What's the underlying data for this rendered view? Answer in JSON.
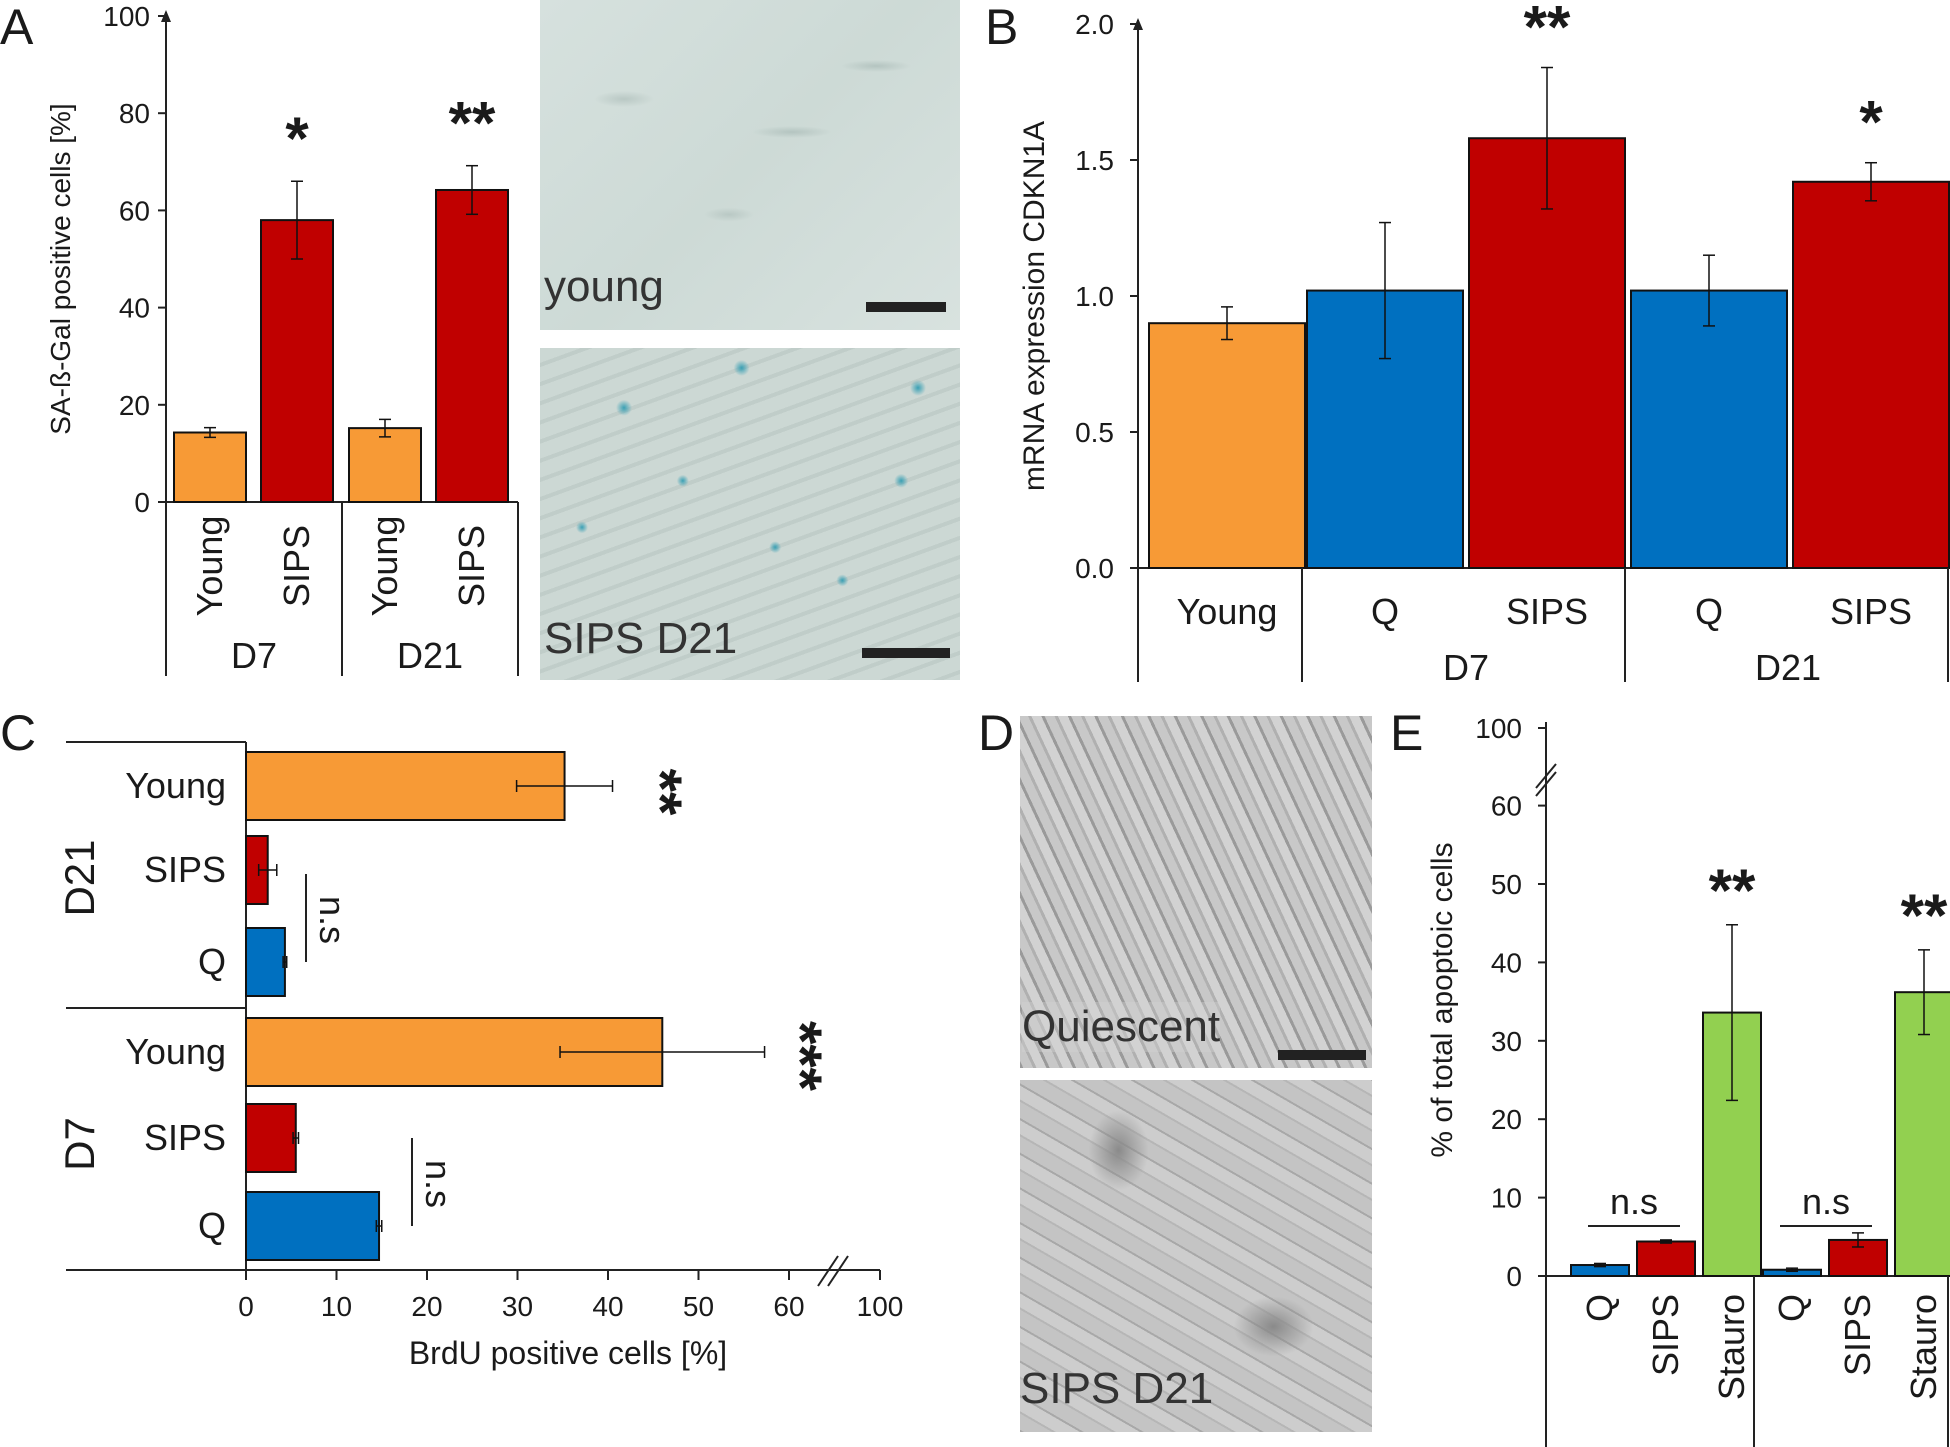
{
  "panel_letters": {
    "a": "A",
    "b": "B",
    "c": "C",
    "d": "D",
    "e": "E"
  },
  "micrographs": {
    "a_top_caption": "young",
    "a_bottom_caption": "SIPS D21",
    "d_top_caption": "Quiescent",
    "d_bottom_caption": "SIPS D21"
  },
  "colors": {
    "young": "#F79A36",
    "sips": "#C00000",
    "q": "#0070C0",
    "stauro": "#92D050"
  },
  "chart_data": [
    {
      "panel": "A",
      "type": "bar",
      "ylabel": "SA-ß-Gal positive cells [%]",
      "ylim": [
        0,
        100
      ],
      "yticks": [
        "0",
        "20",
        "40",
        "60",
        "80",
        "100"
      ],
      "categories": [
        "Young",
        "SIPS",
        "Young",
        "SIPS"
      ],
      "groups": [
        "D7",
        "D21"
      ],
      "values": [
        14.3,
        58,
        15.2,
        64.2
      ],
      "errors": [
        1,
        8,
        1.8,
        5
      ],
      "colors": [
        "young",
        "sips",
        "young",
        "sips"
      ],
      "significance": [
        "",
        "*",
        "",
        "**"
      ]
    },
    {
      "panel": "B",
      "type": "bar",
      "ylabel": "mRNA expression CDKN1A",
      "ylim": [
        0,
        2.0
      ],
      "yticks": [
        "0.0",
        "0.5",
        "1.0",
        "1.5",
        "2.0"
      ],
      "categories": [
        "Young",
        "Q",
        "SIPS",
        "Q",
        "SIPS"
      ],
      "groups": [
        "D7",
        "D21"
      ],
      "values": [
        0.9,
        1.02,
        1.58,
        1.02,
        1.42
      ],
      "errors": [
        0.06,
        0.25,
        0.26,
        0.13,
        0.07
      ],
      "colors": [
        "young",
        "q",
        "sips",
        "q",
        "sips"
      ],
      "significance": [
        "",
        "",
        "**",
        "",
        "*"
      ]
    },
    {
      "panel": "C",
      "type": "bar",
      "orientation": "horizontal",
      "xlabel": "BrdU positive cells [%]",
      "xticks": [
        "0",
        "10",
        "20",
        "30",
        "40",
        "50",
        "60",
        "100"
      ],
      "axis_break": "between 60 and 100",
      "groups": [
        "D21",
        "D7"
      ],
      "categories": [
        "Young",
        "SIPS",
        "Q",
        "Young",
        "SIPS",
        "Q"
      ],
      "values": [
        35.2,
        2.4,
        4.3,
        46,
        5.5,
        14.7
      ],
      "errors": [
        5.3,
        1,
        0.2,
        11.3,
        0.3,
        0.3
      ],
      "colors": [
        "young",
        "sips",
        "q",
        "young",
        "sips",
        "q"
      ],
      "significance": [
        "**",
        "",
        "",
        "***",
        "",
        ""
      ],
      "ns_labels": [
        "n.s",
        "n.s"
      ]
    },
    {
      "panel": "E",
      "type": "bar",
      "ylabel": "% of total apoptoic cells",
      "yticks": [
        "0",
        "10",
        "20",
        "30",
        "40",
        "50",
        "60",
        "100"
      ],
      "axis_break": "between 60 and 100",
      "categories": [
        "Q",
        "SIPS",
        "Stauro",
        "Q",
        "SIPS",
        "Stauro"
      ],
      "values": [
        1.4,
        4.4,
        33.6,
        0.8,
        4.6,
        36.2
      ],
      "errors": [
        0.2,
        0.2,
        11.2,
        0.2,
        0.9,
        5.4
      ],
      "colors": [
        "q",
        "sips",
        "stauro",
        "q",
        "sips",
        "stauro"
      ],
      "significance": [
        "",
        "",
        "**",
        "",
        "",
        "**"
      ],
      "ns_labels": [
        "n.s",
        "n.s"
      ]
    }
  ]
}
